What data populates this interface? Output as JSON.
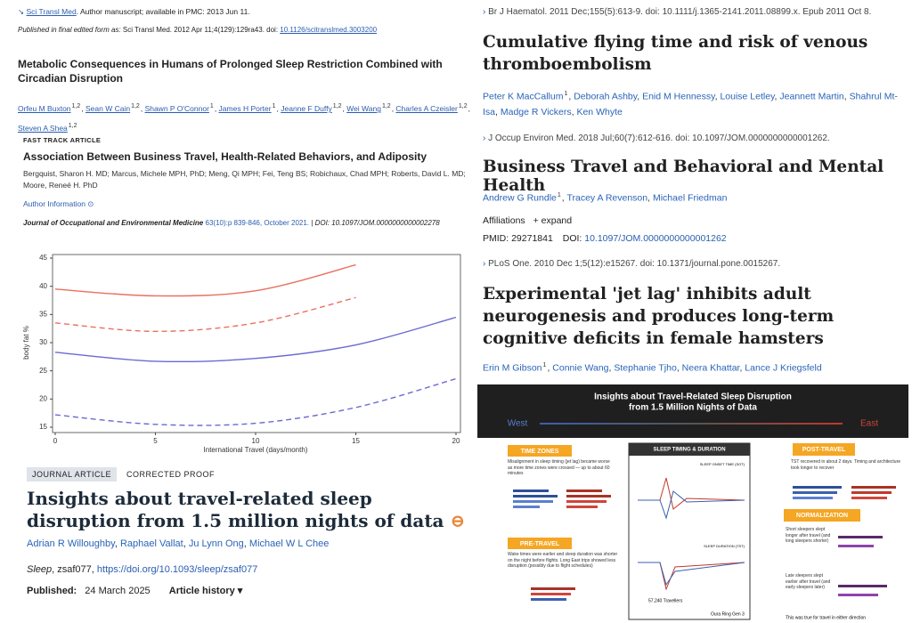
{
  "left": {
    "pmc": {
      "source": "Sci Transl Med",
      "note": ". Author manuscript; available in PMC: 2013 Jun 11.",
      "published_label": "Published in final edited form as:",
      "published": "Sci Transl Med. 2012 Apr 11;4(129):129ra43. doi:",
      "doi": "10.1126/scitranslmed.3003200",
      "title": "Metabolic Consequences in Humans of Prolonged Sleep Restriction Combined with Circadian Disruption",
      "authors": [
        {
          "name": "Orfeu M Buxton",
          "sup": "1,2"
        },
        {
          "name": "Sean W Cain",
          "sup": "1,2"
        },
        {
          "name": "Shawn P O'Connor",
          "sup": "1"
        },
        {
          "name": "James H Porter",
          "sup": "1"
        },
        {
          "name": "Jeanne F Duffy",
          "sup": "1,2"
        },
        {
          "name": "Wei Wang",
          "sup": "1,2"
        },
        {
          "name": "Charles A Czeisler",
          "sup": "1,2"
        },
        {
          "name": "Steven A Shea",
          "sup": "1,2"
        }
      ]
    },
    "joem": {
      "label": "FAST TRACK ARTICLE",
      "title": "Association Between Business Travel, Health-Related Behaviors, and Adiposity",
      "authors": "Bergquist, Sharon H. MD; Marcus, Michele MPH, PhD; Meng, Qi MPH; Fei, Teng BS; Robichaux, Chad MPH; Roberts, David L. MD; Moore, Reneé H. PhD",
      "author_info": "Author Information",
      "journal": "Journal of Occupational and Environmental Medicine",
      "issue": "63(10):p 839-846, October 2021.",
      "doi": "DOI: 10.1097/JOM.0000000000002278"
    },
    "sleep": {
      "badge": "JOURNAL ARTICLE",
      "status": "CORRECTED PROOF",
      "title": "Insights about travel-related sleep disruption from 1.5 million nights of data",
      "authors": [
        {
          "name": "Adrian R Willoughby"
        },
        {
          "name": "Raphael Vallat"
        },
        {
          "name": "Ju Lynn Ong"
        },
        {
          "name": "Michael W L Chee"
        }
      ],
      "journal": "Sleep",
      "id": ", zsaf077,",
      "doi": "https://doi.org/10.1093/sleep/zsaf077",
      "published_label": "Published:",
      "published": "24 March 2025",
      "history": "Article history ▾"
    }
  },
  "chart_data": {
    "type": "line",
    "y_label": "body fat %",
    "x_label": "International Travel (days/month)",
    "x": [
      0,
      5,
      10,
      15,
      20
    ],
    "series": [
      {
        "color": "#e9705e",
        "dashed": false,
        "values": [
          39.5,
          38.3,
          39.2,
          43.8,
          null
        ]
      },
      {
        "color": "#e9705e",
        "dashed": true,
        "values": [
          33.5,
          32.0,
          33.5,
          38.0,
          null
        ]
      },
      {
        "color": "#6a6ad2",
        "dashed": false,
        "values": [
          28.3,
          26.7,
          27.2,
          29.6,
          34.5
        ]
      },
      {
        "color": "#6a6ad2",
        "dashed": true,
        "values": [
          17.2,
          15.5,
          15.7,
          18.5,
          23.6
        ]
      }
    ],
    "xlim": [
      0,
      20
    ],
    "ylim": [
      15,
      45
    ],
    "xticks": [
      0,
      5,
      10,
      15,
      20
    ],
    "yticks": [
      15,
      20,
      25,
      30,
      35,
      40,
      45
    ]
  },
  "right": {
    "items": [
      {
        "citation": "Br J Haematol. 2011 Dec;155(5):613-9. doi: 10.1111/j.1365-2141.2011.08899.x. Epub 2011 Oct 8.",
        "title": "Cumulative flying time and risk of venous thromboembolism",
        "authors": [
          {
            "name": "Peter K MacCallum",
            "sup": "1"
          },
          {
            "name": "Deborah Ashby"
          },
          {
            "name": "Enid M Hennessy"
          },
          {
            "name": "Louise Letley"
          },
          {
            "name": "Jeannett Martin"
          },
          {
            "name": "Shahrul Mt-Isa"
          },
          {
            "name": "Madge R Vickers"
          },
          {
            "name": "Ken Whyte"
          }
        ]
      },
      {
        "citation": "J Occup Environ Med. 2018 Jul;60(7):612-616. doi: 10.1097/JOM.0000000000001262.",
        "title": "Business Travel and Behavioral and Mental Health",
        "authors": [
          {
            "name": "Andrew G Rundle",
            "sup": "1"
          },
          {
            "name": "Tracey A Revenson"
          },
          {
            "name": "Michael Friedman"
          }
        ]
      },
      {
        "citation": "PLoS One. 2010 Dec 1;5(12):e15267. doi: 10.1371/journal.pone.0015267.",
        "title": "Experimental 'jet lag' inhibits adult neurogenesis and produces long-term cognitive deficits in female hamsters",
        "authors": [
          {
            "name": "Erin M Gibson",
            "sup": "1"
          },
          {
            "name": "Connie Wang"
          },
          {
            "name": "Stephanie Tjho"
          },
          {
            "name": "Neera Khattar"
          },
          {
            "name": "Lance J Kriegsfeld"
          }
        ]
      }
    ],
    "affiliations": "Affiliations",
    "expand": "+ expand",
    "pmid": "PMID: 29271841",
    "doi_label": "DOI:",
    "doi": "10.1097/JOM.0000000000001262"
  },
  "infographic": {
    "title": "Insights about Travel-Related Sleep Disruption",
    "subtitle": "from 1.5 Million Nights of Data",
    "west": "West",
    "east": "East",
    "time_zones": "TIME ZONES",
    "time_zones_text": "Misalignment in sleep timing (jet lag) became worse as more time zones were crossed — up to about 60 minutes",
    "center": "SLEEP TIMING & DURATION",
    "onset": "SLEEP ONSET TIME (SOT)",
    "duration": "SLEEP DURATION (TST)",
    "post": "POST-TRAVEL",
    "post_text": "TST recovered in about 2 days. Timing and architecture took longer to recover",
    "pre": "PRE-TRAVEL",
    "pre_text": "Wake times were earlier and sleep duration was shorter on the night before flights. Long East trips showed less disruption (possibly due to flight schedules)",
    "norm": "NORMALIZATION",
    "norm_text1": "Short sleepers slept longer after travel (and long sleepers shorter)",
    "norm_text2": "Late sleepers slept earlier after travel (and early sleepers later)",
    "norm_text3": "This was true for travel in either direction",
    "travellers": "57,240 Travellers",
    "ring": "Oura Ring Gen 3"
  }
}
